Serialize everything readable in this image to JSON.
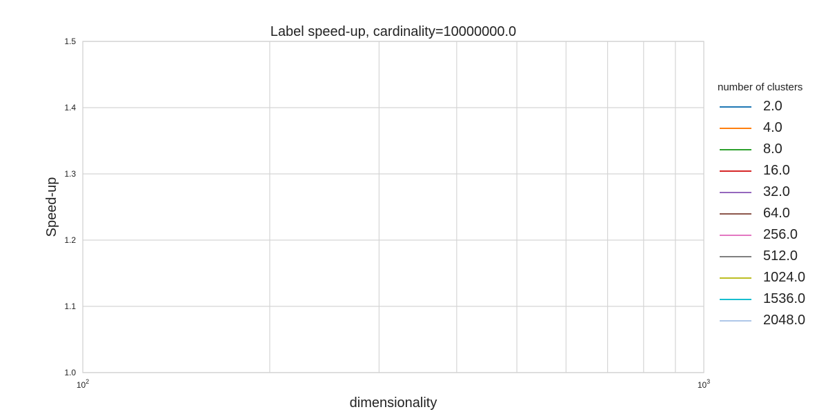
{
  "chart_data": {
    "type": "line",
    "title": "Label speed-up, cardinality=10000000.0",
    "xlabel": "dimensionality",
    "ylabel": "Speed-up",
    "xscale": "log",
    "xlim": [
      100,
      1000
    ],
    "ylim": [
      1.0,
      1.5
    ],
    "xticks": [
      {
        "value": 100,
        "base": "10",
        "exp": "2"
      },
      {
        "value": 1000,
        "base": "10",
        "exp": "3"
      }
    ],
    "yticks": [
      "1.0",
      "1.1",
      "1.2",
      "1.3",
      "1.4",
      "1.5"
    ],
    "grid": true,
    "legend": {
      "title": "number of clusters",
      "placement": "right, outside plot"
    },
    "series": [
      {
        "name": "2.0",
        "color": "#1f77b4",
        "values": []
      },
      {
        "name": "4.0",
        "color": "#ff7f0e",
        "values": []
      },
      {
        "name": "8.0",
        "color": "#2ca02c",
        "values": []
      },
      {
        "name": "16.0",
        "color": "#d62728",
        "values": []
      },
      {
        "name": "32.0",
        "color": "#9467bd",
        "values": []
      },
      {
        "name": "64.0",
        "color": "#8c564b",
        "values": []
      },
      {
        "name": "256.0",
        "color": "#e377c2",
        "values": []
      },
      {
        "name": "512.0",
        "color": "#7f7f7f",
        "values": []
      },
      {
        "name": "1024.0",
        "color": "#bcbd22",
        "values": []
      },
      {
        "name": "1536.0",
        "color": "#17becf",
        "values": []
      },
      {
        "name": "2048.0",
        "color": "#aec7e8",
        "values": []
      }
    ]
  }
}
